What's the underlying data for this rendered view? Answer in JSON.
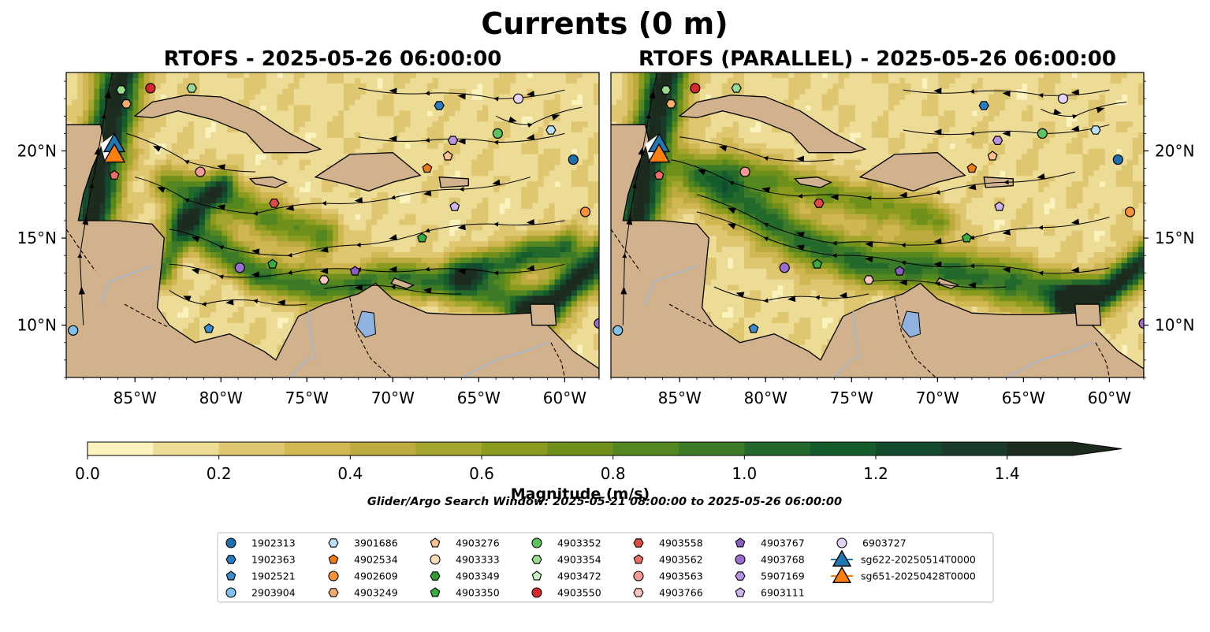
{
  "figure": {
    "suptitle": "Currents (0 m)",
    "subtitle": "Glider/Argo Search Window: 2025-05-21 08:00:00 to 2025-05-26 06:00:00"
  },
  "chart_data": {
    "type": "heatmap",
    "variable": "Current magnitude with streamlines",
    "panels": [
      {
        "id": "rtofs",
        "title": "RTOFS - 2025-05-26 06:00:00"
      },
      {
        "id": "parallel",
        "title": "RTOFS (PARALLEL) - 2025-05-26 06:00:00"
      }
    ],
    "lon_range": [
      -89,
      -58
    ],
    "lat_range": [
      7,
      24.5
    ],
    "lon_ticks": [
      -85,
      -80,
      -75,
      -70,
      -65,
      -60
    ],
    "lon_tick_labels": [
      "85°W",
      "80°W",
      "75°W",
      "70°W",
      "65°W",
      "60°W"
    ],
    "lat_ticks": [
      10,
      15,
      20
    ],
    "lat_tick_labels": [
      "10°N",
      "15°N",
      "20°N"
    ],
    "colorbar": {
      "label": "Magnitude (m/s)",
      "min": 0.0,
      "max": 1.5,
      "step": 0.1,
      "extend": "max",
      "ticks": [
        0.0,
        0.2,
        0.4,
        0.6,
        0.8,
        1.0,
        1.2,
        1.4
      ],
      "tick_labels": [
        "0.0",
        "0.2",
        "0.4",
        "0.6",
        "0.8",
        "1.0",
        "1.2",
        "1.4"
      ],
      "colors": [
        "#fbf3bd",
        "#ecdc96",
        "#dfc670",
        "#d0b752",
        "#bdab3f",
        "#a4a52d",
        "#8a9b1e",
        "#6f901a",
        "#558720",
        "#3c7a27",
        "#23692b",
        "#145c2c",
        "#134b2f",
        "#1a3b2a",
        "#1c2d20"
      ],
      "extend_color": "#1c2a1d"
    },
    "colors": {
      "land": "#d2b28c",
      "lake": "#8fb2de",
      "river": "#9fb8d6"
    },
    "legend": {
      "columns": [
        [
          {
            "label": "1902313",
            "marker": "circle",
            "color": "#1f6fad"
          },
          {
            "label": "1902363",
            "marker": "hexagon",
            "color": "#2b7bc0"
          },
          {
            "label": "1902521",
            "marker": "pentagon",
            "color": "#3b8ccc"
          },
          {
            "label": "2903904",
            "marker": "circle",
            "color": "#7fc1ec"
          }
        ],
        [
          {
            "label": "3901686",
            "marker": "hexagon",
            "color": "#b9e0fa"
          },
          {
            "label": "4902534",
            "marker": "pentagon",
            "color": "#f07c12"
          },
          {
            "label": "4902609",
            "marker": "circle",
            "color": "#f7923a"
          },
          {
            "label": "4903249",
            "marker": "hexagon",
            "color": "#f9ad6a"
          }
        ],
        [
          {
            "label": "4903276",
            "marker": "pentagon",
            "color": "#fbc28f"
          },
          {
            "label": "4903333",
            "marker": "circle",
            "color": "#fddcbc"
          },
          {
            "label": "4903349",
            "marker": "hexagon",
            "color": "#2e9e34"
          },
          {
            "label": "4903350",
            "marker": "pentagon",
            "color": "#3aab41"
          }
        ],
        [
          {
            "label": "4903352",
            "marker": "circle",
            "color": "#5cc45e"
          },
          {
            "label": "4903354",
            "marker": "hexagon",
            "color": "#98dd8e"
          },
          {
            "label": "4903472",
            "marker": "pentagon",
            "color": "#c9f1bf"
          },
          {
            "label": "4903550",
            "marker": "circle",
            "color": "#d42a2a"
          }
        ],
        [
          {
            "label": "4903558",
            "marker": "hexagon",
            "color": "#e04a44"
          },
          {
            "label": "4903562",
            "marker": "pentagon",
            "color": "#ec6e6a"
          },
          {
            "label": "4903563",
            "marker": "circle",
            "color": "#f49b97"
          },
          {
            "label": "4903766",
            "marker": "hexagon",
            "color": "#fbc6c2"
          }
        ],
        [
          {
            "label": "4903767",
            "marker": "pentagon",
            "color": "#8a5cc2"
          },
          {
            "label": "4903768",
            "marker": "circle",
            "color": "#9b6dd0"
          },
          {
            "label": "5907169",
            "marker": "hexagon",
            "color": "#b694e0"
          },
          {
            "label": "6903111",
            "marker": "pentagon",
            "color": "#cdb6ef"
          }
        ],
        [
          {
            "label": "6903727",
            "marker": "circle",
            "color": "#e3d3f7"
          },
          {
            "label": "sg622-20250514T0000",
            "marker": "triangle",
            "color": "#1f77b4"
          },
          {
            "label": "sg651-20250428T0000",
            "marker": "triangle",
            "color": "#ff7f0e"
          }
        ]
      ]
    },
    "argo_floats": [
      {
        "id": "4903354",
        "lon": -85.8,
        "lat": 23.5
      },
      {
        "id": "4903550",
        "lon": -84.1,
        "lat": 23.6
      },
      {
        "id": "4903354",
        "lon": -81.7,
        "lat": 23.6
      },
      {
        "id": "4903249",
        "lon": -85.5,
        "lat": 22.7
      },
      {
        "id": "1902363",
        "lon": -67.3,
        "lat": 22.6
      },
      {
        "id": "6903727",
        "lon": -62.7,
        "lat": 23.0
      },
      {
        "id": "3901686",
        "lon": -60.8,
        "lat": 21.2
      },
      {
        "id": "4903352",
        "lon": -63.9,
        "lat": 21.0
      },
      {
        "id": "5907169",
        "lon": -66.5,
        "lat": 20.6
      },
      {
        "id": "4903276",
        "lon": -66.8,
        "lat": 19.7
      },
      {
        "id": "4902534",
        "lon": -68.0,
        "lat": 19.0
      },
      {
        "id": "1902313",
        "lon": -59.5,
        "lat": 19.5
      },
      {
        "id": "4903563",
        "lon": -81.2,
        "lat": 18.8
      },
      {
        "id": "4903562",
        "lon": -86.2,
        "lat": 18.6
      },
      {
        "id": "4903558",
        "lon": -76.9,
        "lat": 17.0
      },
      {
        "id": "6903111",
        "lon": -66.4,
        "lat": 16.8
      },
      {
        "id": "4902609",
        "lon": -58.8,
        "lat": 16.5
      },
      {
        "id": "4903350",
        "lon": -68.3,
        "lat": 15.0
      },
      {
        "id": "4903350",
        "lon": -77.0,
        "lat": 13.5
      },
      {
        "id": "4903768",
        "lon": -78.9,
        "lat": 13.3
      },
      {
        "id": "4903766",
        "lon": -74.0,
        "lat": 12.6
      },
      {
        "id": "4903767",
        "lon": -72.2,
        "lat": 13.1
      },
      {
        "id": "1902521",
        "lon": -80.7,
        "lat": 9.8
      },
      {
        "id": "2903904",
        "lon": -88.6,
        "lat": 9.7
      },
      {
        "id": "4903768",
        "lon": -58.0,
        "lat": 10.1
      }
    ],
    "gliders": [
      {
        "id": "sg622-20250514T0000",
        "lon": -86.2,
        "lat": 20.4
      },
      {
        "id": "sg651-20250428T0000",
        "lon": -86.2,
        "lat": 19.8
      }
    ]
  }
}
